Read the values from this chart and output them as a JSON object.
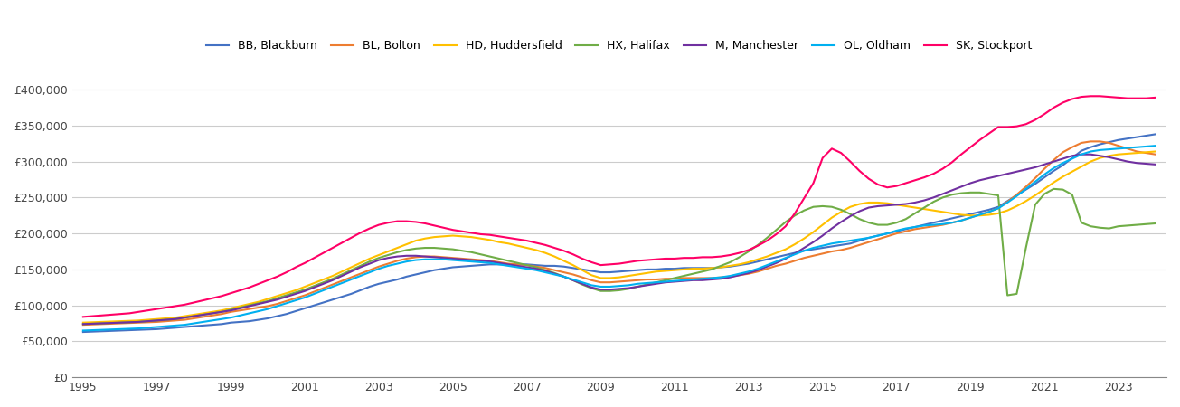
{
  "title": "",
  "years": [
    1995,
    1995.25,
    1995.5,
    1995.75,
    1996,
    1996.25,
    1996.5,
    1996.75,
    1997,
    1997.25,
    1997.5,
    1997.75,
    1998,
    1998.25,
    1998.5,
    1998.75,
    1999,
    1999.25,
    1999.5,
    1999.75,
    2000,
    2000.25,
    2000.5,
    2000.75,
    2001,
    2001.25,
    2001.5,
    2001.75,
    2002,
    2002.25,
    2002.5,
    2002.75,
    2003,
    2003.25,
    2003.5,
    2003.75,
    2004,
    2004.25,
    2004.5,
    2004.75,
    2005,
    2005.25,
    2005.5,
    2005.75,
    2006,
    2006.25,
    2006.5,
    2006.75,
    2007,
    2007.25,
    2007.5,
    2007.75,
    2008,
    2008.25,
    2008.5,
    2008.75,
    2009,
    2009.25,
    2009.5,
    2009.75,
    2010,
    2010.25,
    2010.5,
    2010.75,
    2011,
    2011.25,
    2011.5,
    2011.75,
    2012,
    2012.25,
    2012.5,
    2012.75,
    2013,
    2013.25,
    2013.5,
    2013.75,
    2014,
    2014.25,
    2014.5,
    2014.75,
    2015,
    2015.25,
    2015.5,
    2015.75,
    2016,
    2016.25,
    2016.5,
    2016.75,
    2017,
    2017.25,
    2017.5,
    2017.75,
    2018,
    2018.25,
    2018.5,
    2018.75,
    2019,
    2019.25,
    2019.5,
    2019.75,
    2020,
    2020.25,
    2020.5,
    2020.75,
    2021,
    2021.25,
    2021.5,
    2021.75,
    2022,
    2022.25,
    2022.5,
    2022.75,
    2023,
    2023.25,
    2023.5,
    2023.75,
    2024
  ],
  "series": {
    "BB, Blackburn": {
      "color": "#4472C4",
      "values": [
        63000,
        63500,
        64000,
        64500,
        65000,
        65500,
        66000,
        66500,
        67000,
        68000,
        69000,
        70000,
        71000,
        72000,
        73000,
        74000,
        76000,
        77000,
        78000,
        80000,
        82000,
        85000,
        88000,
        92000,
        96000,
        100000,
        104000,
        108000,
        112000,
        116000,
        121000,
        126000,
        130000,
        133000,
        136000,
        140000,
        143000,
        146000,
        149000,
        151000,
        153000,
        154000,
        155000,
        156000,
        157000,
        157000,
        157000,
        157000,
        157000,
        156000,
        155000,
        155000,
        154000,
        152000,
        150000,
        148000,
        146000,
        146000,
        147000,
        148000,
        149000,
        150000,
        150000,
        151000,
        151000,
        152000,
        152000,
        152000,
        152000,
        153000,
        154000,
        156000,
        158000,
        161000,
        164000,
        167000,
        170000,
        173000,
        176000,
        178000,
        180000,
        182000,
        184000,
        186000,
        190000,
        194000,
        197000,
        200000,
        203000,
        206000,
        209000,
        212000,
        215000,
        218000,
        221000,
        224000,
        227000,
        230000,
        233000,
        237000,
        245000,
        253000,
        261000,
        269000,
        278000,
        287000,
        295000,
        305000,
        315000,
        320000,
        324000,
        327000,
        330000,
        332000,
        334000,
        336000,
        338000
      ]
    },
    "BL, Bolton": {
      "color": "#ED7D31",
      "values": [
        73000,
        73500,
        74000,
        74500,
        75000,
        75500,
        76000,
        76500,
        77000,
        78000,
        79000,
        80000,
        82000,
        84000,
        86000,
        88000,
        91000,
        93000,
        95000,
        97000,
        99000,
        102000,
        106000,
        110000,
        114000,
        119000,
        124000,
        129000,
        134000,
        139000,
        144000,
        149000,
        154000,
        158000,
        162000,
        165000,
        167000,
        168000,
        168000,
        167000,
        166000,
        165000,
        164000,
        163000,
        162000,
        160000,
        158000,
        157000,
        156000,
        154000,
        152000,
        149000,
        146000,
        143000,
        139000,
        135000,
        132000,
        132000,
        133000,
        134000,
        135000,
        136000,
        136000,
        137000,
        137000,
        138000,
        138000,
        138000,
        138000,
        139000,
        140000,
        142000,
        144000,
        147000,
        151000,
        155000,
        158000,
        162000,
        166000,
        169000,
        172000,
        175000,
        177000,
        180000,
        184000,
        188000,
        192000,
        196000,
        200000,
        203000,
        206000,
        208000,
        210000,
        212000,
        215000,
        218000,
        222000,
        226000,
        230000,
        235000,
        244000,
        254000,
        265000,
        277000,
        290000,
        302000,
        313000,
        320000,
        326000,
        328000,
        328000,
        326000,
        322000,
        318000,
        314000,
        312000,
        310000
      ]
    },
    "HD, Huddersfield": {
      "color": "#FFC000",
      "values": [
        76000,
        76500,
        77000,
        77500,
        78000,
        78500,
        79000,
        80000,
        81000,
        82000,
        83000,
        85000,
        87000,
        89000,
        91000,
        93000,
        96000,
        99000,
        102000,
        105000,
        109000,
        113000,
        117000,
        121000,
        126000,
        131000,
        136000,
        141000,
        147000,
        153000,
        159000,
        165000,
        170000,
        175000,
        180000,
        185000,
        190000,
        193000,
        195000,
        196000,
        197000,
        196000,
        195000,
        193000,
        191000,
        188000,
        186000,
        183000,
        180000,
        177000,
        173000,
        168000,
        162000,
        156000,
        149000,
        142000,
        138000,
        138000,
        139000,
        141000,
        143000,
        145000,
        147000,
        148000,
        149000,
        150000,
        151000,
        151000,
        152000,
        153000,
        155000,
        157000,
        160000,
        164000,
        168000,
        173000,
        178000,
        185000,
        193000,
        202000,
        212000,
        222000,
        230000,
        237000,
        241000,
        243000,
        243000,
        242000,
        240000,
        238000,
        236000,
        234000,
        232000,
        230000,
        228000,
        226000,
        225000,
        225000,
        226000,
        228000,
        232000,
        238000,
        245000,
        253000,
        262000,
        271000,
        279000,
        286000,
        293000,
        300000,
        305000,
        308000,
        310000,
        311000,
        312000,
        313000,
        314000
      ]
    },
    "HX, Halifax": {
      "color": "#70AD47",
      "values": [
        74000,
        74500,
        75000,
        75500,
        76000,
        76500,
        77000,
        78000,
        79000,
        80000,
        81000,
        83000,
        85000,
        87000,
        89000,
        91000,
        94000,
        97000,
        100000,
        103000,
        106000,
        110000,
        114000,
        118000,
        122000,
        127000,
        132000,
        137000,
        143000,
        149000,
        155000,
        161000,
        166000,
        170000,
        174000,
        177000,
        179000,
        180000,
        180000,
        179000,
        178000,
        176000,
        174000,
        171000,
        168000,
        165000,
        162000,
        159000,
        156000,
        153000,
        149000,
        145000,
        140000,
        135000,
        129000,
        124000,
        120000,
        120000,
        121000,
        123000,
        126000,
        129000,
        132000,
        135000,
        138000,
        141000,
        144000,
        147000,
        150000,
        155000,
        160000,
        167000,
        175000,
        184000,
        194000,
        205000,
        216000,
        225000,
        232000,
        237000,
        238000,
        237000,
        233000,
        227000,
        220000,
        215000,
        212000,
        212000,
        215000,
        220000,
        228000,
        236000,
        244000,
        250000,
        254000,
        256000,
        257000,
        257000,
        255000,
        253000,
        114000,
        116000,
        180000,
        240000,
        255000,
        262000,
        261000,
        254000,
        215000,
        210000,
        208000,
        207000,
        210000,
        211000,
        212000,
        213000,
        214000
      ]
    },
    "M, Manchester": {
      "color": "#7030A0",
      "values": [
        74000,
        74500,
        75000,
        75500,
        76000,
        76500,
        77000,
        78000,
        79000,
        80000,
        81000,
        83000,
        85000,
        87000,
        89000,
        91000,
        93000,
        96000,
        99000,
        102000,
        105000,
        108000,
        112000,
        116000,
        120000,
        125000,
        130000,
        135000,
        141000,
        147000,
        153000,
        158000,
        163000,
        166000,
        168000,
        169000,
        169000,
        168000,
        167000,
        166000,
        165000,
        164000,
        163000,
        162000,
        161000,
        159000,
        157000,
        155000,
        153000,
        151000,
        148000,
        144000,
        140000,
        135000,
        130000,
        125000,
        122000,
        122000,
        123000,
        124000,
        126000,
        128000,
        130000,
        132000,
        133000,
        134000,
        135000,
        135000,
        136000,
        137000,
        139000,
        142000,
        145000,
        149000,
        154000,
        159000,
        165000,
        172000,
        180000,
        188000,
        197000,
        207000,
        216000,
        224000,
        231000,
        236000,
        238000,
        239000,
        240000,
        241000,
        243000,
        246000,
        250000,
        255000,
        260000,
        265000,
        270000,
        274000,
        277000,
        280000,
        283000,
        286000,
        289000,
        292000,
        296000,
        300000,
        304000,
        308000,
        310000,
        310000,
        308000,
        306000,
        303000,
        300000,
        298000,
        297000,
        296000
      ]
    },
    "OL, Oldham": {
      "color": "#00B0F0",
      "values": [
        65000,
        65500,
        66000,
        66500,
        67000,
        67500,
        68000,
        69000,
        70000,
        71000,
        72000,
        73000,
        75000,
        77000,
        79000,
        81000,
        83000,
        86000,
        89000,
        92000,
        95000,
        99000,
        103000,
        107000,
        111000,
        116000,
        121000,
        126000,
        131000,
        136000,
        141000,
        146000,
        151000,
        155000,
        158000,
        161000,
        163000,
        164000,
        164000,
        164000,
        163000,
        162000,
        161000,
        160000,
        159000,
        157000,
        155000,
        153000,
        151000,
        149000,
        146000,
        143000,
        140000,
        136000,
        132000,
        128000,
        126000,
        126000,
        127000,
        128000,
        130000,
        131000,
        132000,
        133000,
        134000,
        135000,
        136000,
        137000,
        138000,
        139000,
        141000,
        144000,
        147000,
        151000,
        156000,
        161000,
        166000,
        171000,
        176000,
        180000,
        183000,
        186000,
        188000,
        190000,
        192000,
        194000,
        197000,
        200000,
        204000,
        207000,
        209000,
        211000,
        212000,
        213000,
        215000,
        218000,
        222000,
        226000,
        230000,
        235000,
        243000,
        252000,
        262000,
        272000,
        282000,
        291000,
        298000,
        304000,
        310000,
        314000,
        316000,
        317000,
        318000,
        319000,
        320000,
        321000,
        322000
      ]
    },
    "SK, Stockport": {
      "color": "#FF0066",
      "values": [
        84000,
        85000,
        86000,
        87000,
        88000,
        89000,
        91000,
        93000,
        95000,
        97000,
        99000,
        101000,
        104000,
        107000,
        110000,
        113000,
        117000,
        121000,
        125000,
        130000,
        135000,
        140000,
        146000,
        153000,
        159000,
        166000,
        173000,
        180000,
        187000,
        194000,
        201000,
        207000,
        212000,
        215000,
        217000,
        217000,
        216000,
        214000,
        211000,
        208000,
        205000,
        203000,
        201000,
        199000,
        198000,
        196000,
        194000,
        192000,
        190000,
        187000,
        184000,
        180000,
        176000,
        171000,
        165000,
        160000,
        156000,
        157000,
        158000,
        160000,
        162000,
        163000,
        164000,
        165000,
        165000,
        166000,
        166000,
        167000,
        167000,
        168000,
        170000,
        173000,
        177000,
        183000,
        190000,
        199000,
        210000,
        228000,
        249000,
        270000,
        305000,
        318000,
        312000,
        300000,
        287000,
        276000,
        268000,
        264000,
        266000,
        270000,
        274000,
        278000,
        283000,
        290000,
        299000,
        310000,
        320000,
        330000,
        339000,
        348000,
        348000,
        349000,
        352000,
        358000,
        366000,
        375000,
        382000,
        387000,
        390000,
        391000,
        391000,
        390000,
        389000,
        388000,
        388000,
        388000,
        389000
      ]
    }
  },
  "ylim": [
    0,
    420000
  ],
  "yticks": [
    0,
    50000,
    100000,
    150000,
    200000,
    250000,
    300000,
    350000,
    400000
  ],
  "xticks": [
    1995,
    1997,
    1999,
    2001,
    2003,
    2005,
    2007,
    2009,
    2011,
    2013,
    2015,
    2017,
    2019,
    2021,
    2023
  ],
  "background_color": "#ffffff",
  "grid_color": "#cccccc",
  "legend_order": [
    "BB, Blackburn",
    "BL, Bolton",
    "HD, Huddersfield",
    "HX, Halifax",
    "M, Manchester",
    "OL, Oldham",
    "SK, Stockport"
  ]
}
